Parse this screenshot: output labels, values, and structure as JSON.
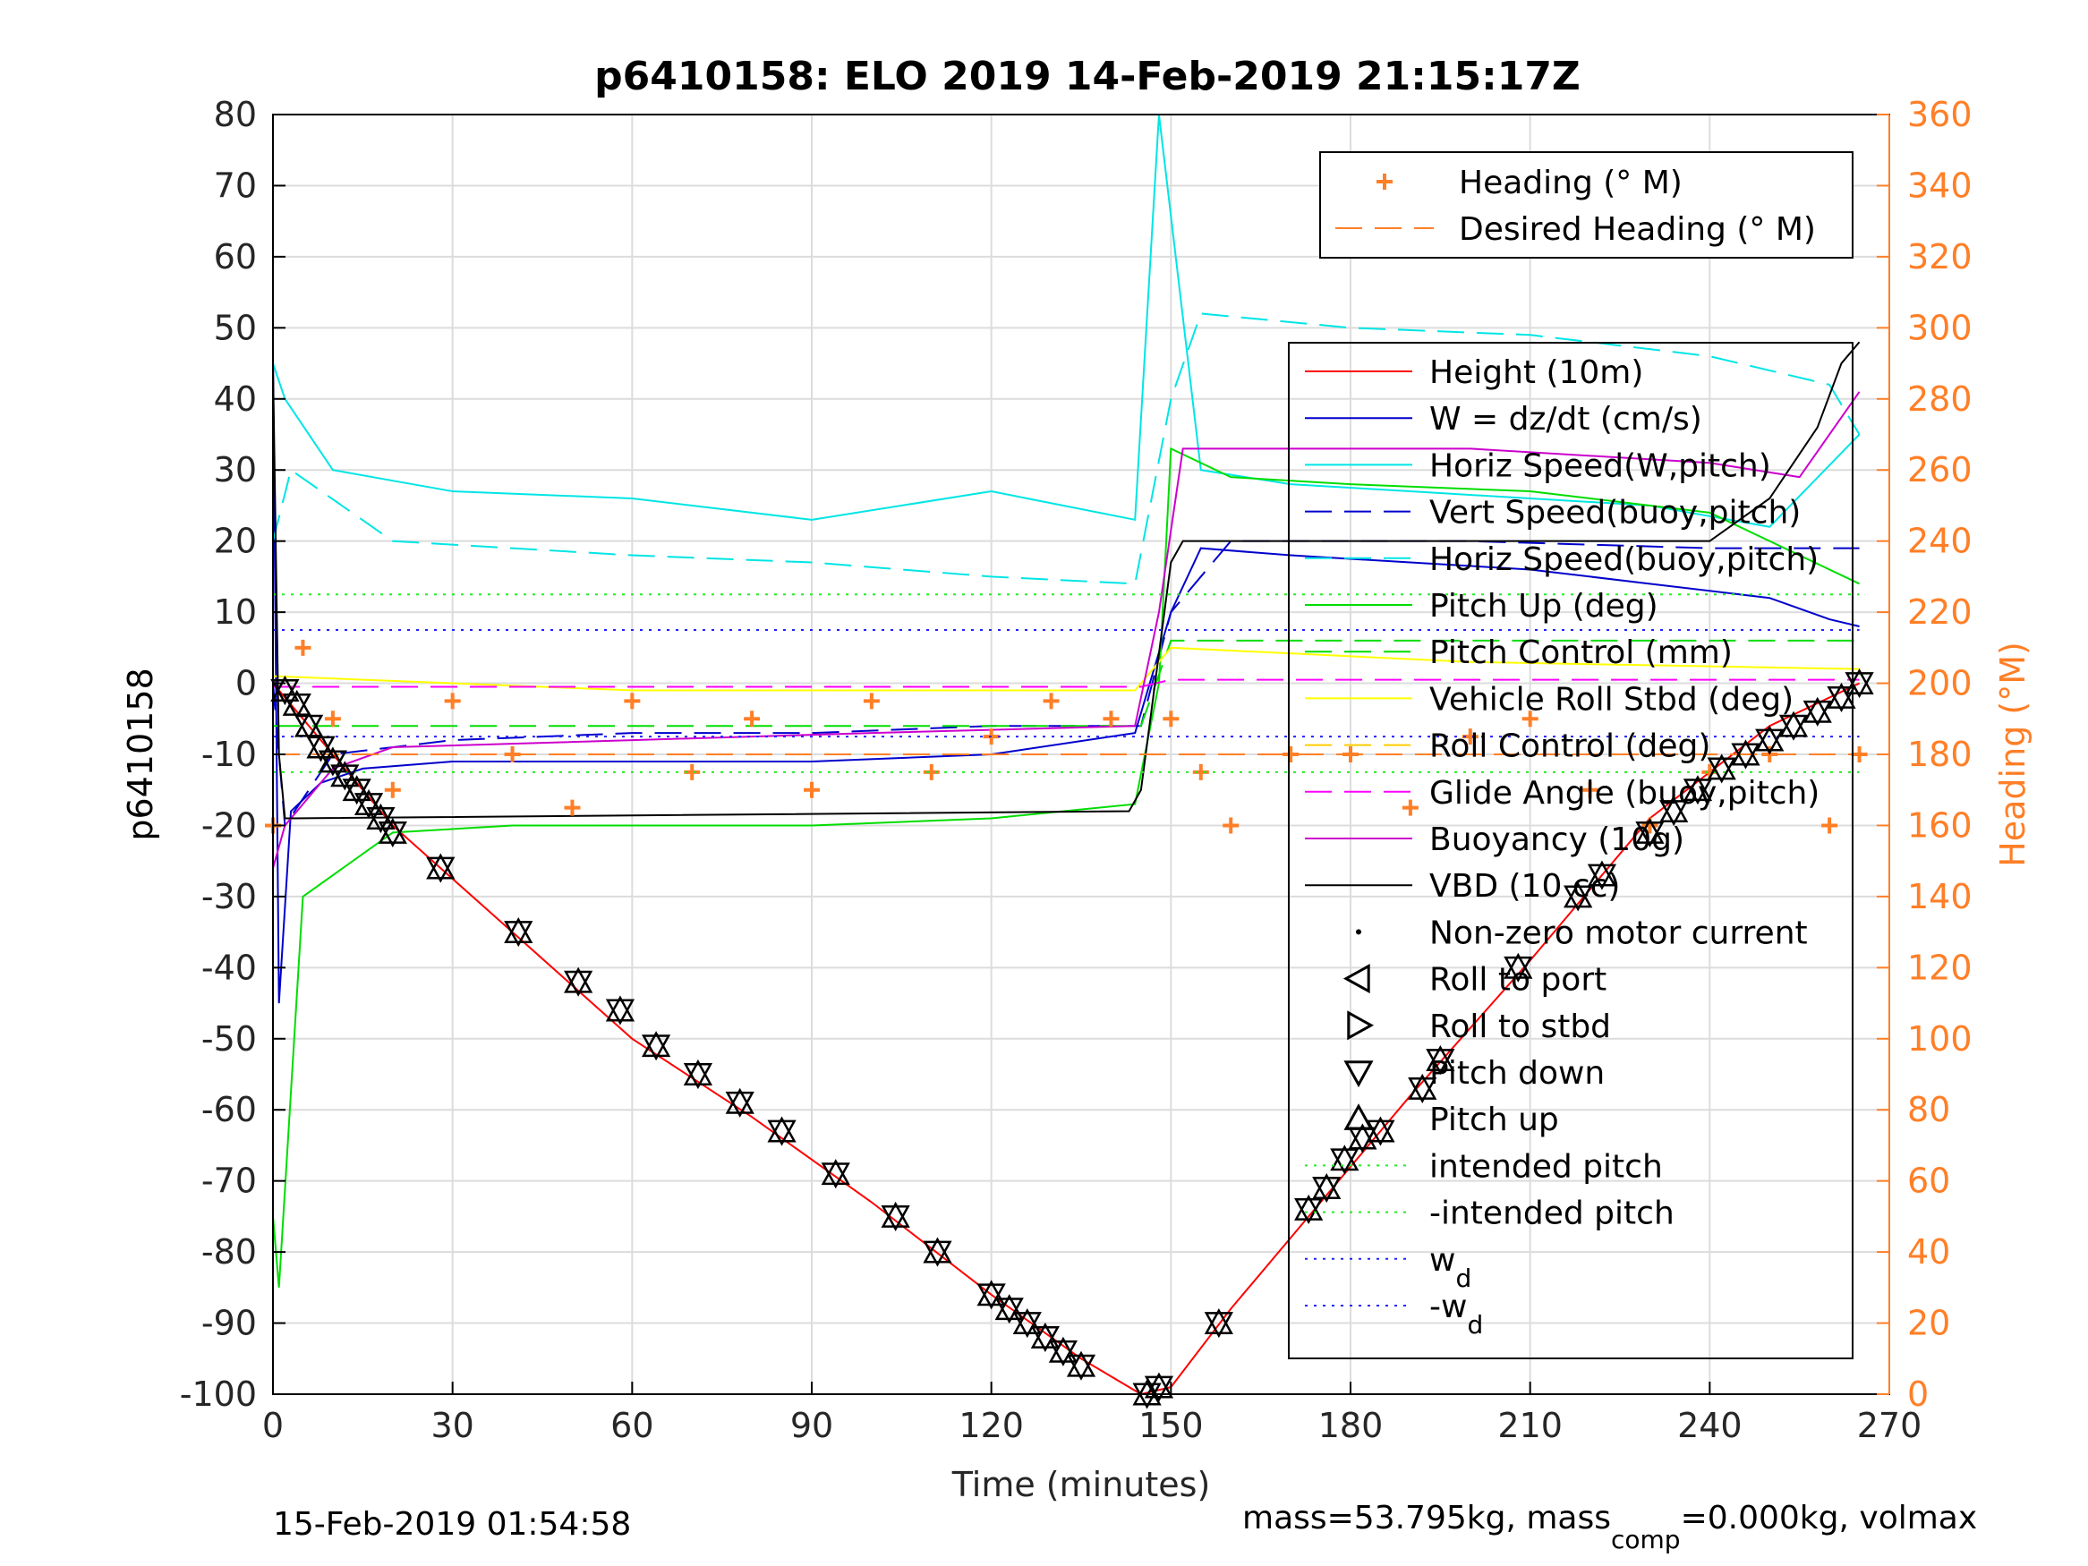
{
  "figure": {
    "title": "p6410158: ELO 2019 14-Feb-2019 21:15:17Z",
    "xlabel": "Time (minutes)",
    "ylabel_left": "p6410158",
    "ylabel_right": "Heading (°M)",
    "footer_left": "15-Feb-2019 01:54:58",
    "footer_right_a": "mass=53.795kg, mass",
    "footer_right_sub": "comp",
    "footer_right_b": "=0.000kg, volmax"
  },
  "colors": {
    "height": "#ff0000",
    "w": "#0000cc",
    "horiz_w": "#ff00ff",
    "vert_buoy": "#0000cc",
    "horiz_buoy": "#00e5e5",
    "pitch_up": "#00dd00",
    "pitch_control": "#44ee44",
    "roll_stbd": "#ffff00",
    "roll_control": "#ffcc00",
    "glide": "#ff00ff",
    "buoyancy": "#cc00cc",
    "vbd": "#000000",
    "heading": "#ff7f27",
    "intended": "#22ee22",
    "wd": "#2222ff",
    "axis_right": "#ff7f27"
  },
  "legend_top": [
    {
      "label": "Heading (° M)",
      "style": "plus-marker",
      "color": "#ff7f27"
    },
    {
      "label": "Desired Heading (° M)",
      "style": "dashed",
      "color": "#ff7f27"
    }
  ],
  "legend_main": [
    {
      "label": "Height (10m)",
      "style": "solid",
      "color": "#ff0000"
    },
    {
      "label": "W = dz/dt (cm/s)",
      "style": "solid",
      "color": "#0000cc"
    },
    {
      "label": "Horiz Speed(W,pitch)",
      "style": "solid",
      "color": "#00e5e5"
    },
    {
      "label": "Vert Speed(buoy,pitch)",
      "style": "dashed",
      "color": "#0000cc"
    },
    {
      "label": "Horiz Speed(buoy,pitch)",
      "style": "dashed",
      "color": "#00e5e5"
    },
    {
      "label": "Pitch Up (deg)",
      "style": "solid",
      "color": "#00dd00"
    },
    {
      "label": "Pitch Control (mm)",
      "style": "dashed",
      "color": "#00dd00"
    },
    {
      "label": "Vehicle Roll Stbd (deg)",
      "style": "solid",
      "color": "#ffff00"
    },
    {
      "label": "Roll Control (deg)",
      "style": "dashed",
      "color": "#ffcc00"
    },
    {
      "label": "Glide Angle (buoy,pitch)",
      "style": "dashed",
      "color": "#ff00ff"
    },
    {
      "label": "Buoyancy (10g)",
      "style": "solid",
      "color": "#cc00cc"
    },
    {
      "label": "VBD (10 cc)",
      "style": "solid",
      "color": "#000000"
    },
    {
      "label": "Non-zero motor current",
      "style": "dot",
      "color": "#000000"
    },
    {
      "label": "Roll to port",
      "style": "tri-left",
      "color": "#000000"
    },
    {
      "label": "Roll to stbd",
      "style": "tri-right",
      "color": "#000000"
    },
    {
      "label": "Pitch down",
      "style": "tri-down",
      "color": "#000000"
    },
    {
      "label": "Pitch up",
      "style": "tri-up",
      "color": "#000000"
    },
    {
      "label": "intended pitch",
      "style": "dotted",
      "color": "#22ee22"
    },
    {
      "label": "-intended pitch",
      "style": "dotted",
      "color": "#22ee22"
    },
    {
      "label": "w",
      "sub": "d",
      "style": "dotted",
      "color": "#2222ff"
    },
    {
      "label": "-w",
      "sub": "d",
      "style": "dotted",
      "color": "#2222ff"
    }
  ],
  "chart_data": {
    "type": "line",
    "title": "p6410158: ELO 2019 14-Feb-2019 21:15:17Z",
    "xlabel": "Time (minutes)",
    "ylabel": "p6410158",
    "y2label": "Heading (°M)",
    "xlim": [
      0,
      270
    ],
    "ylim": [
      -100,
      80
    ],
    "y2lim": [
      0,
      360
    ],
    "xticks": [
      0,
      30,
      60,
      90,
      120,
      150,
      180,
      210,
      240,
      270
    ],
    "yticks": [
      -100,
      -90,
      -80,
      -70,
      -60,
      -50,
      -40,
      -30,
      -20,
      -10,
      0,
      10,
      20,
      30,
      40,
      50,
      60,
      70,
      80
    ],
    "y2ticks": [
      0,
      20,
      40,
      60,
      80,
      100,
      120,
      140,
      160,
      180,
      200,
      220,
      240,
      260,
      280,
      300,
      320,
      340,
      360
    ],
    "grid": true,
    "legend_placement": "right",
    "series": [
      {
        "name": "Height (10m)",
        "x": [
          0,
          2,
          20,
          40,
          60,
          80,
          100,
          120,
          135,
          145,
          150,
          160,
          175,
          190,
          210,
          230,
          250,
          265
        ],
        "y": [
          0,
          -2,
          -20,
          -35,
          -50,
          -61,
          -73,
          -86,
          -95,
          -100,
          -99,
          -88,
          -73,
          -58,
          -39,
          -19,
          -6,
          0
        ]
      },
      {
        "name": "W = dz/dt (cm/s)",
        "x": [
          0,
          1,
          3,
          8,
          15,
          30,
          60,
          90,
          120,
          144,
          150,
          155,
          170,
          190,
          210,
          230,
          250,
          260,
          265
        ],
        "y": [
          46,
          -45,
          -18,
          -14,
          -12,
          -11,
          -11,
          -11,
          -10,
          -7,
          10,
          19,
          18,
          17,
          16,
          14,
          12,
          9,
          8
        ]
      },
      {
        "name": "Horiz Speed(W,pitch)",
        "x": [
          0,
          2,
          10,
          30,
          60,
          90,
          120,
          144,
          148,
          155,
          170,
          190,
          210,
          230,
          250,
          265
        ],
        "y": [
          45,
          40,
          30,
          27,
          26,
          23,
          27,
          23,
          80,
          30,
          28,
          27,
          26,
          25,
          22,
          35
        ]
      },
      {
        "name": "Vert Speed(buoy,pitch)",
        "x": [
          0,
          2,
          10,
          30,
          60,
          90,
          120,
          145,
          150,
          160,
          200,
          240,
          265
        ],
        "y": [
          0,
          -20,
          -10,
          -8,
          -7,
          -7,
          -6,
          -6,
          10,
          20,
          20,
          19,
          19
        ]
      },
      {
        "name": "Horiz Speed(buoy,pitch)",
        "x": [
          0,
          3,
          20,
          40,
          60,
          90,
          120,
          144,
          150,
          155,
          180,
          210,
          240,
          260,
          265
        ],
        "y": [
          20,
          30,
          20,
          19,
          18,
          17,
          15,
          14,
          40,
          52,
          50,
          49,
          46,
          42,
          35
        ]
      },
      {
        "name": "Pitch Up (deg)",
        "x": [
          0,
          1,
          5,
          20,
          40,
          60,
          90,
          120,
          144,
          148,
          150,
          160,
          180,
          210,
          240,
          265
        ],
        "y": [
          -75,
          -85,
          -30,
          -21,
          -20,
          -20,
          -20,
          -19,
          -17,
          0,
          33,
          29,
          28,
          27,
          24,
          14
        ]
      },
      {
        "name": "Pitch Control (mm)",
        "x": [
          0,
          145,
          150,
          265
        ],
        "y": [
          -6,
          -6,
          6,
          6
        ]
      },
      {
        "name": "Vehicle Roll Stbd (deg)",
        "x": [
          0,
          60,
          120,
          144,
          150,
          200,
          265
        ],
        "y": [
          1,
          -1,
          -1,
          -1,
          5,
          3,
          2
        ]
      },
      {
        "name": "Roll Control (deg)",
        "x": [
          0,
          265
        ],
        "y": [
          -10,
          -10
        ]
      },
      {
        "name": "Glide Angle (buoy,pitch)",
        "x": [
          0,
          145,
          150,
          265
        ],
        "y": [
          -0.5,
          -0.5,
          0.5,
          0.5
        ]
      },
      {
        "name": "Buoyancy (10g)",
        "x": [
          0,
          2,
          10,
          20,
          60,
          100,
          144,
          148,
          152,
          200,
          240,
          255,
          265
        ],
        "y": [
          -26,
          -20,
          -12,
          -9,
          -8,
          -7,
          -6,
          10,
          33,
          33,
          31,
          29,
          41
        ]
      },
      {
        "name": "VBD (10 cc)",
        "x": [
          0,
          1,
          2,
          3,
          143,
          145,
          150,
          152,
          200,
          240,
          250,
          258,
          262,
          265
        ],
        "y": [
          45,
          -10,
          -19,
          -19,
          -18,
          -15,
          17,
          20,
          20,
          20,
          26,
          36,
          45,
          48
        ]
      },
      {
        "name": "Heading (° M)",
        "x": [
          0,
          5,
          10,
          20,
          30,
          40,
          50,
          60,
          70,
          80,
          90,
          100,
          110,
          120,
          130,
          140,
          150,
          155,
          160,
          170,
          180,
          190,
          200,
          210,
          220,
          230,
          240,
          250,
          260,
          265
        ],
        "y": [
          160,
          210,
          190,
          170,
          195,
          180,
          165,
          195,
          175,
          190,
          170,
          195,
          175,
          185,
          195,
          190,
          190,
          175,
          160,
          180,
          180,
          165,
          185,
          190,
          170,
          160,
          175,
          180,
          160,
          180
        ]
      },
      {
        "name": "Desired Heading (° M)",
        "x": [
          0,
          265
        ],
        "y": [
          180,
          180
        ]
      },
      {
        "name": "intended pitch",
        "x": [
          0,
          265
        ],
        "y": [
          12.5,
          12.5
        ]
      },
      {
        "name": "-intended pitch",
        "x": [
          0,
          265
        ],
        "y": [
          -12.5,
          -12.5
        ]
      },
      {
        "name": "w",
        "x": [
          0,
          265
        ],
        "y": [
          7.5,
          7.5
        ]
      },
      {
        "name": "-w",
        "x": [
          0,
          265
        ],
        "y": [
          -7.5,
          -7.5
        ]
      }
    ],
    "pitch_markers": {
      "x": [
        2,
        4,
        6,
        8,
        10,
        12,
        14,
        16,
        18,
        20,
        28,
        41,
        51,
        58,
        64,
        71,
        78,
        85,
        94,
        104,
        111,
        120,
        123,
        126,
        129,
        132,
        135,
        146,
        148,
        158,
        173,
        176,
        179,
        182,
        185,
        192,
        195,
        208,
        218,
        222,
        230,
        234,
        238,
        242,
        246,
        250,
        254,
        258,
        262,
        265
      ],
      "y": [
        -1,
        -3,
        -6,
        -9,
        -11,
        -13,
        -15,
        -17,
        -19,
        -21,
        -26,
        -35,
        -42,
        -46,
        -51,
        -55,
        -59,
        -63,
        -69,
        -75,
        -80,
        -86,
        -88,
        -90,
        -92,
        -94,
        -96,
        -100,
        -99,
        -90,
        -74,
        -71,
        -67,
        -64,
        -63,
        -57,
        -53,
        -40,
        -30,
        -27,
        -21,
        -18,
        -15,
        -12,
        -10,
        -8,
        -6,
        -4,
        -2,
        0
      ]
    }
  }
}
